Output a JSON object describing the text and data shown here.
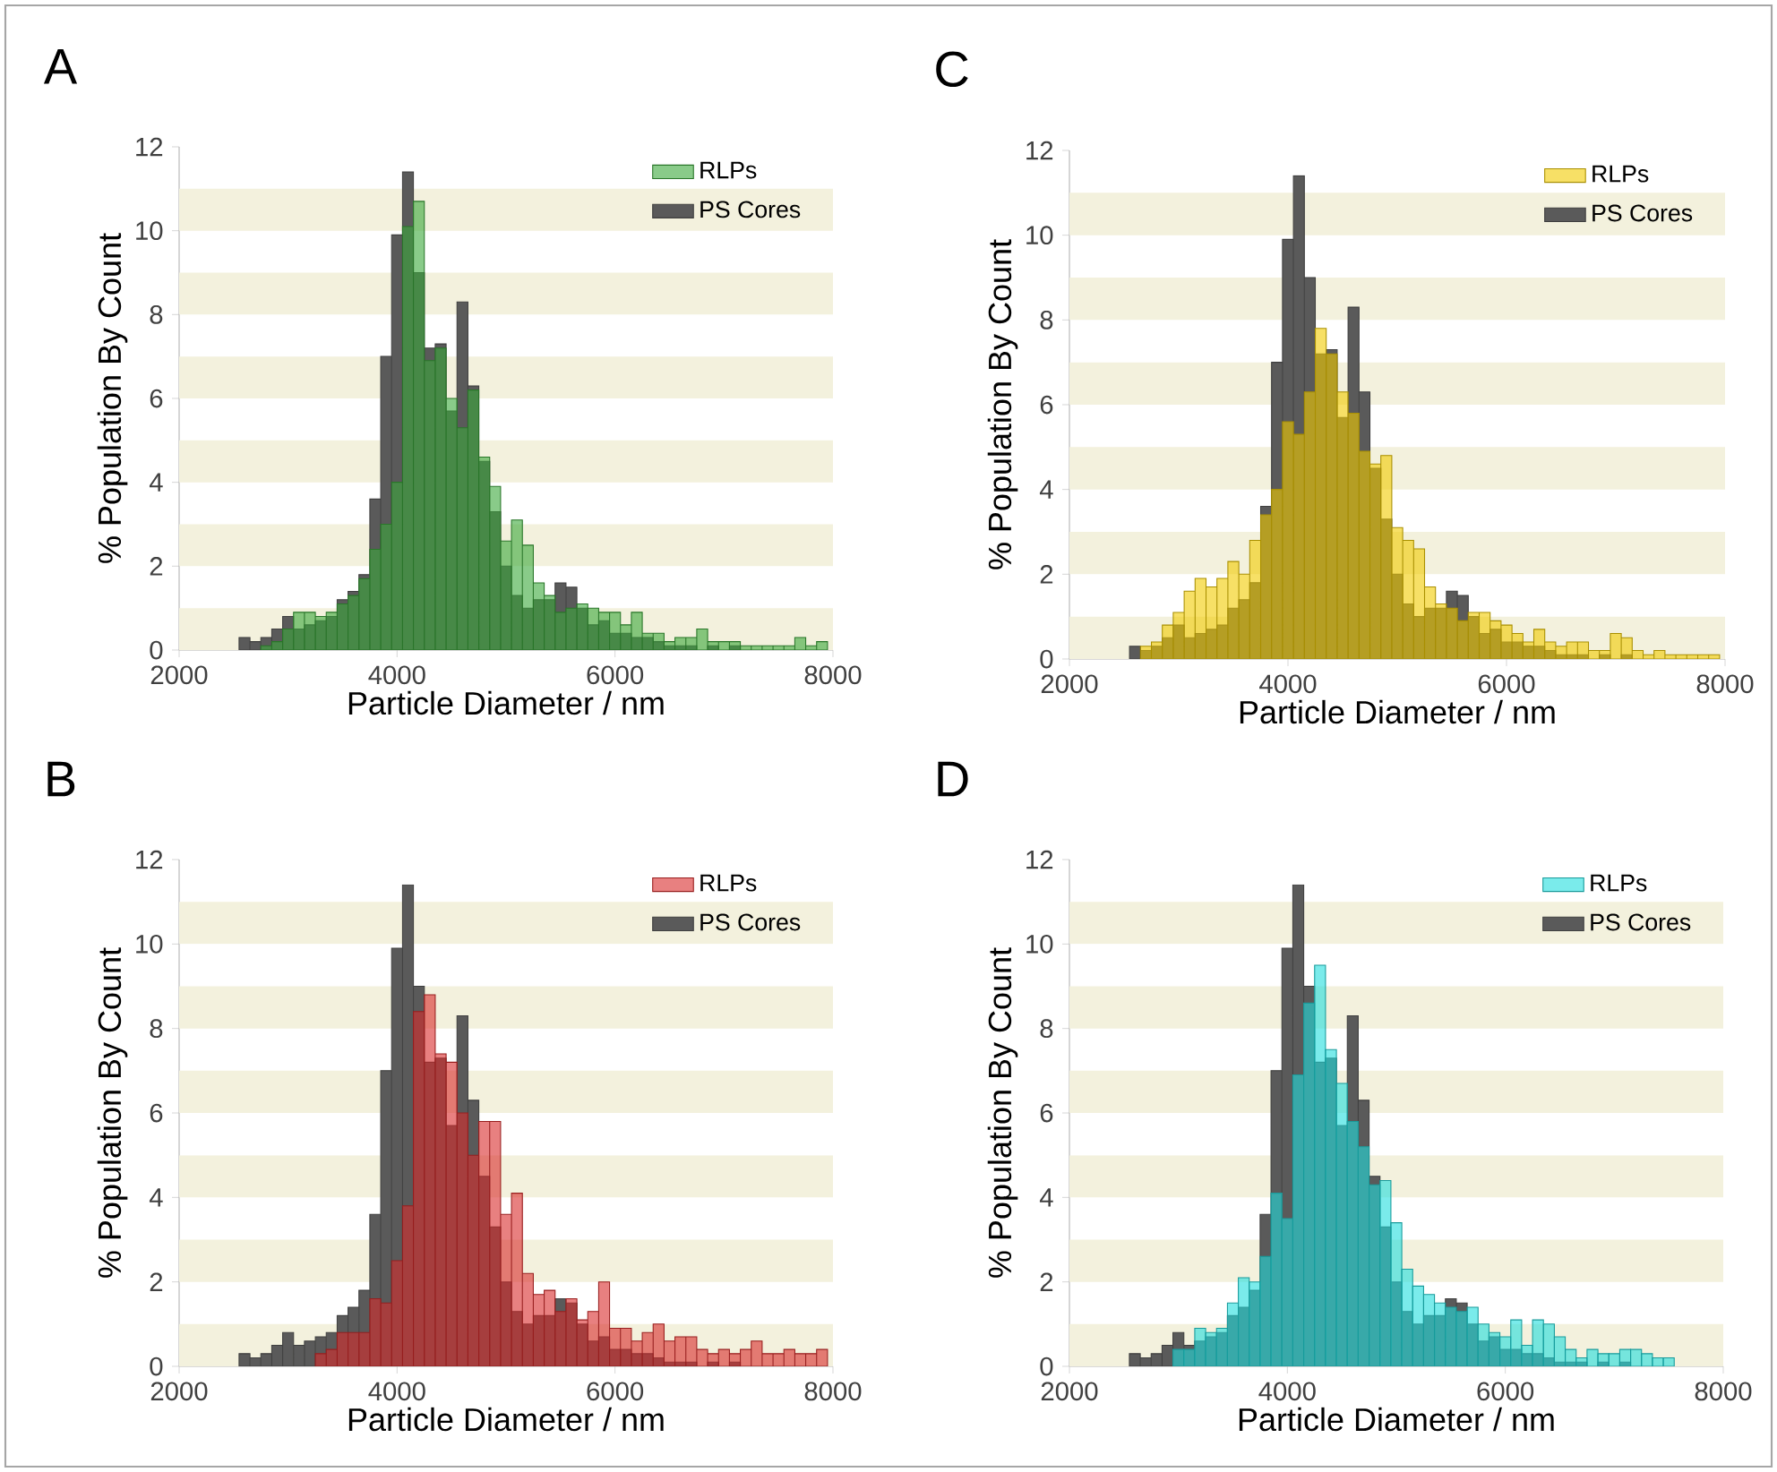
{
  "chart_data": [
    {
      "type": "histogram",
      "title": "A",
      "xlabel": "Particle Diameter / nm",
      "ylabel": "% Population By Count",
      "xlim": [
        2000,
        8000
      ],
      "xticks": [
        2000,
        4000,
        6000,
        8000
      ],
      "ylim": [
        0,
        12
      ],
      "yticks": [
        0,
        2,
        4,
        6,
        8,
        10,
        12
      ],
      "legend": "top right",
      "bins": [
        2050,
        2150,
        2250,
        2350,
        2450,
        2550,
        2650,
        2750,
        2850,
        2950,
        3050,
        3150,
        3250,
        3350,
        3450,
        3550,
        3650,
        3750,
        3850,
        3950,
        4050,
        4150,
        4250,
        4350,
        4450,
        4550,
        4650,
        4750,
        4850,
        4950,
        5050,
        5150,
        5250,
        5350,
        5450,
        5550,
        5650,
        5750,
        5850,
        5950,
        6050,
        6150,
        6250,
        6350,
        6450,
        6550,
        6650,
        6750,
        6850,
        6950,
        7050,
        7150,
        7250,
        7350,
        7450,
        7550,
        7650,
        7750,
        7850,
        7950
      ],
      "bands": [
        {
          "axis": "y",
          "from": 0,
          "to": 1,
          "color": "#f3f1dd"
        },
        {
          "axis": "y",
          "from": 2,
          "to": 3,
          "color": "#f3f1dd"
        },
        {
          "axis": "y",
          "from": 4,
          "to": 5,
          "color": "#f3f1dd"
        },
        {
          "axis": "y",
          "from": 6,
          "to": 7,
          "color": "#f3f1dd"
        },
        {
          "axis": "y",
          "from": 8,
          "to": 9,
          "color": "#f3f1dd"
        },
        {
          "axis": "y",
          "from": 10,
          "to": 11,
          "color": "#f3f1dd"
        }
      ],
      "series": [
        {
          "name": "RLPs",
          "color": "#3aa83a",
          "values": [
            null,
            null,
            null,
            null,
            null,
            null,
            null,
            0.1,
            0.2,
            0.5,
            0.9,
            0.9,
            0.8,
            0.9,
            1.1,
            1.3,
            1.7,
            2.4,
            3.0,
            4.0,
            10.1,
            10.7,
            6.9,
            7.2,
            6.0,
            5.3,
            6.2,
            4.6,
            3.9,
            2.6,
            3.1,
            2.5,
            1.6,
            1.3,
            0.9,
            1.0,
            1.1,
            1.0,
            0.9,
            0.9,
            0.6,
            0.9,
            0.4,
            0.4,
            0.2,
            0.3,
            0.3,
            0.5,
            0.2,
            0.2,
            0.2,
            0.1,
            0.1,
            0.1,
            0.1,
            0.1,
            0.3,
            0.1,
            0.2
          ]
        },
        {
          "name": "PS Cores",
          "color": "#5a5a5a",
          "values": [
            null,
            null,
            null,
            null,
            null,
            0.3,
            0.2,
            0.3,
            0.5,
            0.8,
            0.5,
            0.6,
            0.7,
            0.8,
            1.2,
            1.4,
            1.8,
            3.6,
            7.0,
            9.9,
            11.4,
            9.0,
            7.2,
            7.3,
            5.7,
            8.3,
            6.3,
            4.5,
            3.3,
            2.0,
            1.3,
            1.0,
            1.2,
            1.2,
            1.6,
            1.5,
            1.0,
            0.6,
            0.7,
            0.4,
            0.4,
            0.3,
            0.3,
            0.2,
            0.1,
            0.1,
            0.1,
            null,
            0.1,
            null,
            0.1,
            null,
            null,
            null,
            null,
            null,
            null,
            null,
            null
          ]
        }
      ]
    },
    {
      "type": "histogram",
      "title": "C",
      "xlabel": "Particle Diameter / nm",
      "ylabel": "% Population By Count",
      "xlim": [
        2000,
        8000
      ],
      "xticks": [
        2000,
        4000,
        6000,
        8000
      ],
      "ylim": [
        0,
        12
      ],
      "yticks": [
        0,
        2,
        4,
        6,
        8,
        10,
        12
      ],
      "legend": "top right",
      "bins": [
        2050,
        2150,
        2250,
        2350,
        2450,
        2550,
        2650,
        2750,
        2850,
        2950,
        3050,
        3150,
        3250,
        3350,
        3450,
        3550,
        3650,
        3750,
        3850,
        3950,
        4050,
        4150,
        4250,
        4350,
        4450,
        4550,
        4650,
        4750,
        4850,
        4950,
        5050,
        5150,
        5250,
        5350,
        5450,
        5550,
        5650,
        5750,
        5850,
        5950,
        6050,
        6150,
        6250,
        6350,
        6450,
        6550,
        6650,
        6750,
        6850,
        6950,
        7050,
        7150,
        7250,
        7350,
        7450,
        7550,
        7650,
        7750,
        7850,
        7950
      ],
      "bands": [
        {
          "axis": "y",
          "from": 0,
          "to": 1,
          "color": "#f3f1dd"
        },
        {
          "axis": "y",
          "from": 2,
          "to": 3,
          "color": "#f3f1dd"
        },
        {
          "axis": "y",
          "from": 4,
          "to": 5,
          "color": "#f3f1dd"
        },
        {
          "axis": "y",
          "from": 6,
          "to": 7,
          "color": "#f3f1dd"
        },
        {
          "axis": "y",
          "from": 8,
          "to": 9,
          "color": "#f3f1dd"
        },
        {
          "axis": "y",
          "from": 10,
          "to": 11,
          "color": "#f3f1dd"
        }
      ],
      "series": [
        {
          "name": "RLPs",
          "color": "#f2cc00",
          "values": [
            null,
            null,
            null,
            null,
            null,
            null,
            0.3,
            0.4,
            0.8,
            1.1,
            1.6,
            1.9,
            1.7,
            1.9,
            2.3,
            2.0,
            2.8,
            3.4,
            4.0,
            5.6,
            5.3,
            6.3,
            7.8,
            7.2,
            6.3,
            5.8,
            4.9,
            4.6,
            4.8,
            3.1,
            2.8,
            2.6,
            1.7,
            1.3,
            1.2,
            0.9,
            1.1,
            1.1,
            0.9,
            0.8,
            0.6,
            0.4,
            0.7,
            0.4,
            0.3,
            0.4,
            0.4,
            0.2,
            0.2,
            0.6,
            0.5,
            0.2,
            0.1,
            0.2,
            0.1,
            0.1,
            0.1,
            0.1,
            0.1
          ]
        },
        {
          "name": "PS Cores",
          "color": "#5a5a5a",
          "values": [
            null,
            null,
            null,
            null,
            null,
            0.3,
            0.2,
            0.3,
            0.5,
            0.8,
            0.5,
            0.6,
            0.7,
            0.8,
            1.2,
            1.4,
            1.8,
            3.6,
            7.0,
            9.9,
            11.4,
            9.0,
            7.2,
            7.3,
            5.7,
            8.3,
            6.3,
            4.5,
            3.3,
            2.0,
            1.3,
            1.0,
            1.2,
            1.2,
            1.6,
            1.5,
            1.0,
            0.6,
            0.7,
            0.4,
            0.4,
            0.3,
            0.3,
            0.2,
            0.1,
            0.1,
            0.1,
            null,
            0.1,
            null,
            0.1,
            null,
            null,
            null,
            null,
            null,
            null,
            null,
            null
          ]
        }
      ]
    },
    {
      "type": "histogram",
      "title": "B",
      "xlabel": "Particle Diameter / nm",
      "ylabel": "% Population By Count",
      "xlim": [
        2000,
        8000
      ],
      "xticks": [
        2000,
        4000,
        6000,
        8000
      ],
      "ylim": [
        0,
        12
      ],
      "yticks": [
        0,
        2,
        4,
        6,
        8,
        10,
        12
      ],
      "legend": "top right",
      "bins": [
        2050,
        2150,
        2250,
        2350,
        2450,
        2550,
        2650,
        2750,
        2850,
        2950,
        3050,
        3150,
        3250,
        3350,
        3450,
        3550,
        3650,
        3750,
        3850,
        3950,
        4050,
        4150,
        4250,
        4350,
        4450,
        4550,
        4650,
        4750,
        4850,
        4950,
        5050,
        5150,
        5250,
        5350,
        5450,
        5550,
        5650,
        5750,
        5850,
        5950,
        6050,
        6150,
        6250,
        6350,
        6450,
        6550,
        6650,
        6750,
        6850,
        6950,
        7050,
        7150,
        7250,
        7350,
        7450,
        7550,
        7650,
        7750,
        7850,
        7950
      ],
      "bands": [
        {
          "axis": "y",
          "from": 0,
          "to": 1,
          "color": "#f3f1dd"
        },
        {
          "axis": "y",
          "from": 2,
          "to": 3,
          "color": "#f3f1dd"
        },
        {
          "axis": "y",
          "from": 4,
          "to": 5,
          "color": "#f3f1dd"
        },
        {
          "axis": "y",
          "from": 6,
          "to": 7,
          "color": "#f3f1dd"
        },
        {
          "axis": "y",
          "from": 8,
          "to": 9,
          "color": "#f3f1dd"
        },
        {
          "axis": "y",
          "from": 10,
          "to": 11,
          "color": "#f3f1dd"
        }
      ],
      "series": [
        {
          "name": "RLPs",
          "color": "#d92b2b",
          "values": [
            null,
            null,
            null,
            null,
            null,
            null,
            null,
            null,
            null,
            null,
            null,
            null,
            0.3,
            0.4,
            0.8,
            0.8,
            0.8,
            1.6,
            1.5,
            2.5,
            3.8,
            8.4,
            8.8,
            7.4,
            7.2,
            6.0,
            5.0,
            5.8,
            5.8,
            3.6,
            4.1,
            2.2,
            1.7,
            1.8,
            1.3,
            1.6,
            1.1,
            1.3,
            2.0,
            0.9,
            0.9,
            0.6,
            0.8,
            1.0,
            0.6,
            0.7,
            0.7,
            0.4,
            0.3,
            0.4,
            0.3,
            0.4,
            0.6,
            0.3,
            0.3,
            0.4,
            0.3,
            0.3,
            0.4
          ]
        },
        {
          "name": "PS Cores",
          "color": "#5a5a5a",
          "values": [
            null,
            null,
            null,
            null,
            null,
            0.3,
            0.2,
            0.3,
            0.5,
            0.8,
            0.5,
            0.6,
            0.7,
            0.8,
            1.2,
            1.4,
            1.8,
            3.6,
            7.0,
            9.9,
            11.4,
            9.0,
            7.2,
            7.3,
            5.7,
            8.3,
            6.3,
            4.5,
            3.3,
            2.0,
            1.3,
            1.0,
            1.2,
            1.2,
            1.6,
            1.5,
            1.0,
            0.6,
            0.7,
            0.4,
            0.4,
            0.3,
            0.3,
            0.2,
            0.1,
            0.1,
            0.1,
            null,
            0.1,
            null,
            0.1,
            null,
            null,
            null,
            null,
            null,
            null,
            null,
            null
          ]
        }
      ]
    },
    {
      "type": "histogram",
      "title": "D",
      "xlabel": "Particle Diameter / nm",
      "ylabel": "% Population By Count",
      "xlim": [
        2000,
        8000
      ],
      "xticks": [
        2000,
        4000,
        6000,
        8000
      ],
      "ylim": [
        0,
        12
      ],
      "yticks": [
        0,
        2,
        4,
        6,
        8,
        10,
        12
      ],
      "legend": "top right",
      "bins": [
        2050,
        2150,
        2250,
        2350,
        2450,
        2550,
        2650,
        2750,
        2850,
        2950,
        3050,
        3150,
        3250,
        3350,
        3450,
        3550,
        3650,
        3750,
        3850,
        3950,
        4050,
        4150,
        4250,
        4350,
        4450,
        4550,
        4650,
        4750,
        4850,
        4950,
        5050,
        5150,
        5250,
        5350,
        5450,
        5550,
        5650,
        5750,
        5850,
        5950,
        6050,
        6150,
        6250,
        6350,
        6450,
        6550,
        6650,
        6750,
        6850,
        6950,
        7050,
        7150,
        7250,
        7350,
        7450,
        7550,
        7650,
        7750,
        7850,
        7950
      ],
      "bands": [
        {
          "axis": "y",
          "from": 0,
          "to": 1,
          "color": "#f3f1dd"
        },
        {
          "axis": "y",
          "from": 2,
          "to": 3,
          "color": "#f3f1dd"
        },
        {
          "axis": "y",
          "from": 4,
          "to": 5,
          "color": "#f3f1dd"
        },
        {
          "axis": "y",
          "from": 6,
          "to": 7,
          "color": "#f3f1dd"
        },
        {
          "axis": "y",
          "from": 8,
          "to": 9,
          "color": "#f3f1dd"
        },
        {
          "axis": "y",
          "from": 10,
          "to": 11,
          "color": "#f3f1dd"
        }
      ],
      "series": [
        {
          "name": "RLPs",
          "color": "#22dede",
          "values": [
            null,
            null,
            null,
            null,
            null,
            null,
            null,
            null,
            null,
            0.4,
            0.4,
            0.9,
            0.8,
            0.9,
            1.5,
            2.1,
            2.0,
            2.6,
            4.1,
            3.5,
            6.9,
            8.6,
            9.5,
            7.5,
            6.7,
            5.8,
            5.2,
            4.3,
            4.4,
            3.4,
            2.3,
            1.9,
            1.7,
            1.5,
            1.4,
            1.3,
            1.4,
            1.0,
            0.8,
            0.7,
            1.1,
            0.5,
            1.1,
            1.0,
            0.7,
            0.4,
            0.2,
            0.4,
            0.3,
            0.3,
            0.4,
            0.4,
            0.3,
            0.2,
            0.2,
            null,
            null,
            null,
            null
          ]
        },
        {
          "name": "PS Cores",
          "color": "#5a5a5a",
          "values": [
            null,
            null,
            null,
            null,
            null,
            0.3,
            0.2,
            0.3,
            0.5,
            0.8,
            0.5,
            0.6,
            0.7,
            0.8,
            1.2,
            1.4,
            1.8,
            3.6,
            7.0,
            9.9,
            11.4,
            9.0,
            7.2,
            7.3,
            5.7,
            8.3,
            6.3,
            4.5,
            3.3,
            2.0,
            1.3,
            1.0,
            1.2,
            1.2,
            1.6,
            1.5,
            1.0,
            0.6,
            0.7,
            0.4,
            0.4,
            0.3,
            0.3,
            0.2,
            0.1,
            0.1,
            0.1,
            null,
            0.1,
            null,
            0.1,
            null,
            null,
            null,
            null,
            null,
            null,
            null,
            null
          ]
        }
      ]
    }
  ]
}
